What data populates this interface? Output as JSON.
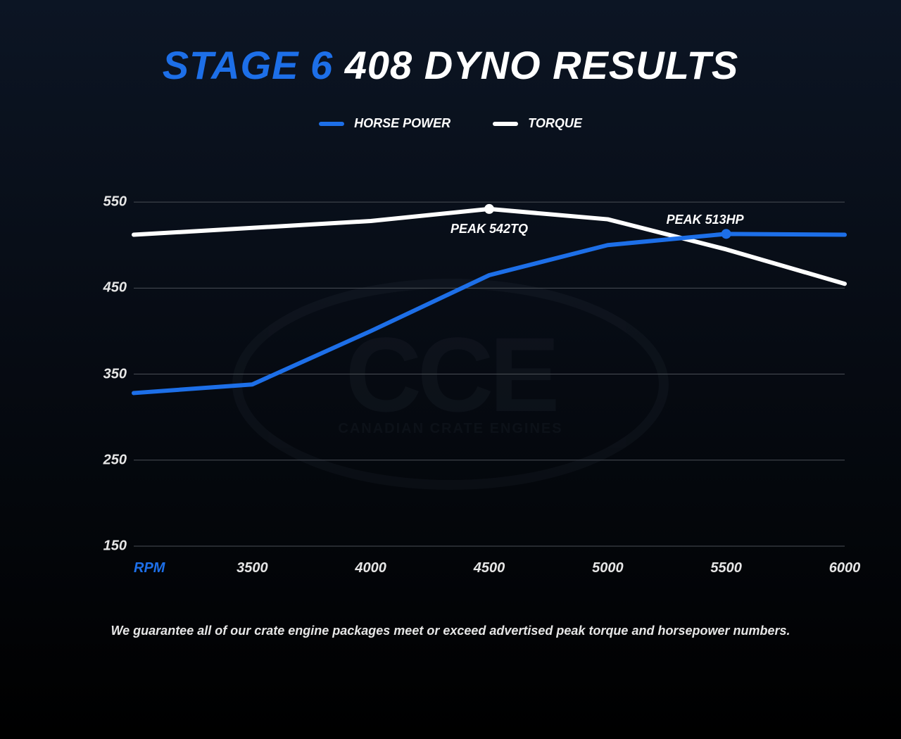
{
  "title": {
    "accent": "STAGE 6",
    "rest": "408 DYNO RESULTS"
  },
  "legend": {
    "hp": {
      "label": "HORSE POWER",
      "color": "#1d6fe8"
    },
    "tq": {
      "label": "TORQUE",
      "color": "#ffffff"
    }
  },
  "chart": {
    "type": "line",
    "background_top": "#0c1524",
    "background_bottom": "#000000",
    "grid_color": "#4a4f56",
    "grid_width": 1,
    "line_width": 6,
    "marker_radius": 7,
    "axis_label_color": "#e6e6e6",
    "x": {
      "label": "RPM",
      "label_color": "#1d6fe8",
      "ticks": [
        3500,
        4000,
        4500,
        5000,
        5500,
        6000
      ],
      "min": 3000,
      "max": 6000
    },
    "y": {
      "ticks": [
        150,
        250,
        350,
        450,
        550
      ],
      "min": 150,
      "max": 600
    },
    "series": {
      "hp": {
        "color": "#1d6fe8",
        "x": [
          3000,
          3500,
          4000,
          4500,
          5000,
          5500,
          6000
        ],
        "y": [
          328,
          338,
          400,
          465,
          500,
          513,
          512
        ],
        "peak": {
          "x": 5500,
          "y": 513,
          "label": "PEAK 513HP",
          "label_dy": -30,
          "label_dx": -30
        }
      },
      "tq": {
        "color": "#ffffff",
        "x": [
          3000,
          3500,
          4000,
          4500,
          5000,
          5500,
          6000
        ],
        "y": [
          512,
          520,
          528,
          542,
          530,
          495,
          455
        ],
        "peak": {
          "x": 4500,
          "y": 542,
          "label": "PEAK 542TQ",
          "label_dy": 18,
          "label_dx": 0
        }
      }
    }
  },
  "watermark": {
    "main": "CCE",
    "sub": "CANADIAN CRATE ENGINES"
  },
  "footer": "We guarantee all of our crate engine packages meet or exceed advertised peak torque and horsepower numbers."
}
